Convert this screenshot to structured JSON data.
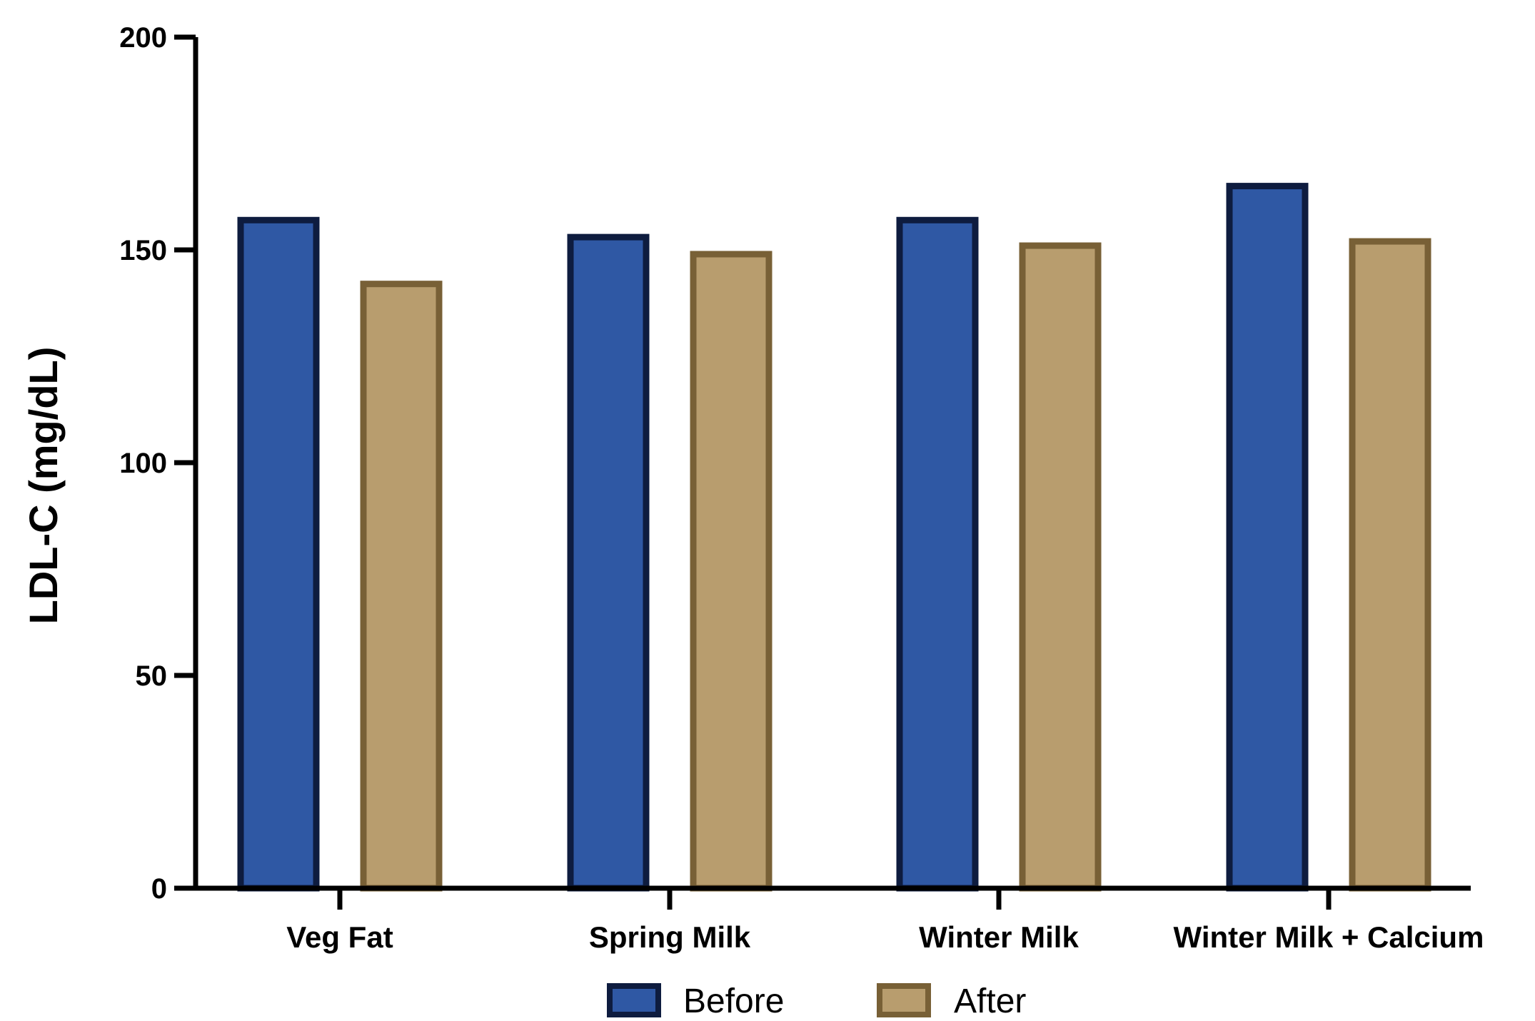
{
  "chart_data": {
    "type": "bar",
    "categories": [
      "Veg Fat",
      "Spring Milk",
      "Winter Milk",
      "Winter Milk + Calcium"
    ],
    "series": [
      {
        "name": "Before",
        "values": [
          157,
          153,
          157,
          165
        ],
        "fill": "#2F58A4",
        "stroke": "#0E1C3F"
      },
      {
        "name": "After",
        "values": [
          142,
          149,
          151,
          152
        ],
        "fill": "#B89D6E",
        "stroke": "#786036"
      }
    ],
    "title": "",
    "xlabel": "",
    "ylabel": "LDL-C (mg/dL)",
    "ylim": [
      0,
      200
    ],
    "yticks": [
      0,
      50,
      100,
      150,
      200
    ],
    "grid": false,
    "legend": "bottom-center"
  }
}
